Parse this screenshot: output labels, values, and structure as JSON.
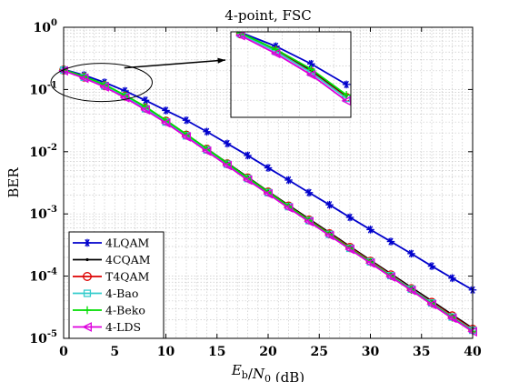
{
  "chart_data": {
    "type": "line",
    "title": "4-point, FSC",
    "xlabel": "E_b/N_0 (dB)",
    "ylabel": "BER",
    "xlim": [
      0,
      40
    ],
    "ylim": [
      1e-05,
      1
    ],
    "yscale": "log",
    "grid": true,
    "legend_position": "bottom-left",
    "x_ticks": [
      "0",
      "5",
      "10",
      "15",
      "20",
      "25",
      "30",
      "35",
      "40"
    ],
    "y_ticks": [
      {
        "base": "10",
        "exp": "0"
      },
      {
        "base": "10",
        "exp": "-1"
      },
      {
        "base": "10",
        "exp": "-2"
      },
      {
        "base": "10",
        "exp": "-3"
      },
      {
        "base": "10",
        "exp": "-4"
      },
      {
        "base": "10",
        "exp": "-5"
      }
    ],
    "x": [
      0,
      2,
      4,
      6,
      8,
      10,
      12,
      14,
      16,
      18,
      20,
      22,
      24,
      26,
      28,
      30,
      32,
      34,
      36,
      38,
      40
    ],
    "series": [
      {
        "name": "4LQAM",
        "color": "#0000cc",
        "marker": "asterisk",
        "values": [
          0.21,
          0.17,
          0.13,
          0.095,
          0.067,
          0.046,
          0.032,
          0.021,
          0.0135,
          0.0087,
          0.0055,
          0.0035,
          0.0022,
          0.0014,
          0.00088,
          0.00056,
          0.00036,
          0.00023,
          0.000145,
          9.3e-05,
          6e-05
        ]
      },
      {
        "name": "4CQAM",
        "color": "#000000",
        "marker": "point",
        "values": [
          0.205,
          0.16,
          0.118,
          0.08,
          0.052,
          0.032,
          0.019,
          0.0112,
          0.0066,
          0.0039,
          0.0023,
          0.00138,
          0.00083,
          0.0005,
          0.0003,
          0.00018,
          0.000109,
          6.6e-05,
          4e-05,
          2.4e-05,
          1.45e-05
        ]
      },
      {
        "name": "T4QAM",
        "color": "#dd0000",
        "marker": "circle",
        "values": [
          0.205,
          0.158,
          0.115,
          0.078,
          0.05,
          0.031,
          0.0185,
          0.011,
          0.0064,
          0.0038,
          0.00225,
          0.00134,
          0.0008,
          0.00048,
          0.00029,
          0.000174,
          0.000105,
          6.3e-05,
          3.8e-05,
          2.3e-05,
          1.4e-05
        ]
      },
      {
        "name": "4-Bao",
        "color": "#33cccc",
        "marker": "square",
        "values": [
          0.205,
          0.157,
          0.114,
          0.077,
          0.049,
          0.03,
          0.018,
          0.0107,
          0.0063,
          0.0037,
          0.0022,
          0.00131,
          0.00078,
          0.00047,
          0.00028,
          0.00017,
          0.000102,
          6.2e-05,
          3.7e-05,
          2.2e-05,
          1.35e-05
        ]
      },
      {
        "name": "4-Beko",
        "color": "#00dd00",
        "marker": "plus",
        "values": [
          0.208,
          0.162,
          0.12,
          0.081,
          0.053,
          0.032,
          0.019,
          0.0112,
          0.0065,
          0.0038,
          0.00225,
          0.00133,
          0.00079,
          0.00047,
          0.00028,
          0.000168,
          0.0001,
          6e-05,
          3.6e-05,
          2.15e-05,
          1.3e-05
        ]
      },
      {
        "name": "4-LDS",
        "color": "#dd00dd",
        "marker": "triangle-left",
        "values": [
          0.2,
          0.152,
          0.11,
          0.074,
          0.047,
          0.029,
          0.0173,
          0.0102,
          0.006,
          0.0035,
          0.0021,
          0.00125,
          0.00075,
          0.00045,
          0.00027,
          0.000162,
          9.7e-05,
          5.9e-05,
          3.5e-05,
          2.1e-05,
          1.28e-05
        ]
      }
    ],
    "inset": {
      "x": [
        0,
        2,
        4,
        6
      ],
      "note": "magnified view of the curves for 0–6 dB"
    }
  }
}
